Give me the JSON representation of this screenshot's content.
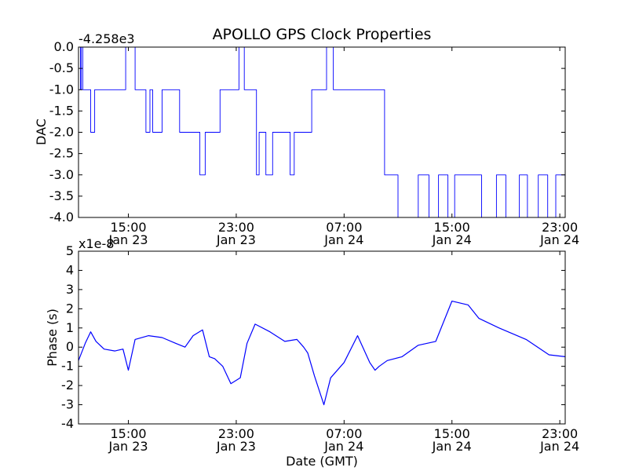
{
  "chart_data": [
    {
      "type": "line",
      "title": "APOLLO GPS Clock Properties",
      "ylabel": "DAC",
      "xlabel": "",
      "y_offset_text": "-4.258e3",
      "ylim": [
        -4.0,
        0.0
      ],
      "yticks": [
        "-4.0",
        "-3.5",
        "-3.0",
        "-2.5",
        "-2.0",
        "-1.5",
        "-1.0",
        "-0.5",
        "0.0"
      ],
      "xlim": [
        11.3,
        47.4
      ],
      "xticks": [
        {
          "time": "15:00",
          "date": "Jan 23"
        },
        {
          "time": "23:00",
          "date": "Jan 23"
        },
        {
          "time": "07:00",
          "date": "Jan 24"
        },
        {
          "time": "15:00",
          "date": "Jan 24"
        },
        {
          "time": "23:00",
          "date": "Jan 24"
        }
      ],
      "line_color": "#0000ff",
      "series": [
        {
          "hours": [
            11.3,
            11.45,
            11.5,
            11.62,
            11.7,
            12.2,
            12.3,
            12.5,
            12.6,
            14.6,
            14.8,
            15.5,
            15.7,
            16.3,
            16.6,
            16.8,
            17.5,
            18.2,
            18.8,
            19.0,
            19.5,
            20.3,
            20.7,
            21.8,
            22.5,
            23.2,
            23.6,
            24.5,
            24.7,
            25.2,
            25.7,
            27.0,
            27.3,
            28.1,
            28.6,
            29.2,
            29.7,
            30.2,
            31.7,
            33.3,
            34.0,
            34.6,
            35.0,
            36.5,
            37.3,
            38.0,
            38.7,
            39.2,
            40.0,
            41.2,
            42.3,
            43.0,
            44.0,
            44.6,
            45.4,
            46.1,
            46.7,
            47.4
          ],
          "values": [
            0,
            -1,
            0,
            -1,
            -1,
            -2,
            -2,
            -1,
            -1,
            -1,
            0,
            -1,
            -1,
            -2,
            -1,
            -2,
            -1,
            -1,
            -2,
            -2,
            -2,
            -3,
            -2,
            -1,
            -1,
            0,
            -1,
            -3,
            -2,
            -3,
            -2,
            -3,
            -2,
            -2,
            -1,
            -1,
            0,
            -1,
            -1,
            -1,
            -3,
            -3,
            -4,
            -3,
            -4,
            -3,
            -4,
            -3,
            -3,
            -4,
            -3,
            -4,
            -3,
            -4,
            -3,
            -4,
            -3,
            -3
          ]
        }
      ]
    },
    {
      "type": "line",
      "title": "",
      "ylabel": "Phase (s)",
      "xlabel": "Date (GMT)",
      "y_offset_text": "x1e-8",
      "ylim": [
        -4,
        5
      ],
      "yticks": [
        "-4",
        "-3",
        "-2",
        "-1",
        "0",
        "1",
        "2",
        "3",
        "4",
        "5"
      ],
      "xlim": [
        11.3,
        47.4
      ],
      "xticks": [
        {
          "time": "15:00",
          "date": "Jan 23"
        },
        {
          "time": "23:00",
          "date": "Jan 23"
        },
        {
          "time": "07:00",
          "date": "Jan 24"
        },
        {
          "time": "15:00",
          "date": "Jan 24"
        },
        {
          "time": "23:00",
          "date": "Jan 24"
        }
      ],
      "line_color": "#0000ff",
      "series": [
        {
          "hours": [
            11.3,
            11.8,
            12.2,
            12.6,
            13.2,
            14.0,
            14.6,
            15.0,
            15.5,
            16.5,
            17.5,
            18.5,
            19.2,
            19.8,
            20.5,
            21.0,
            21.4,
            22.0,
            22.6,
            23.3,
            23.8,
            24.4,
            25.5,
            26.6,
            27.5,
            28.0,
            28.3,
            28.8,
            29.5,
            30.0,
            31.0,
            32.0,
            32.9,
            33.3,
            33.6,
            34.2,
            35.3,
            36.5,
            37.8,
            39.0,
            40.2,
            41.0,
            42.5,
            44.5,
            46.2,
            47.4
          ],
          "values": [
            -0.7,
            0.2,
            0.8,
            0.3,
            -0.1,
            -0.2,
            -0.1,
            -1.2,
            0.4,
            0.6,
            0.5,
            0.2,
            0.0,
            0.6,
            0.9,
            -0.5,
            -0.6,
            -1.0,
            -1.9,
            -1.6,
            0.2,
            1.2,
            0.8,
            0.3,
            0.4,
            0.0,
            -0.3,
            -1.5,
            -3.0,
            -1.6,
            -0.8,
            0.6,
            -0.8,
            -1.2,
            -1.0,
            -0.7,
            -0.5,
            0.1,
            0.3,
            2.4,
            2.2,
            1.5,
            1.0,
            0.4,
            -0.4,
            -0.5
          ]
        }
      ]
    }
  ]
}
